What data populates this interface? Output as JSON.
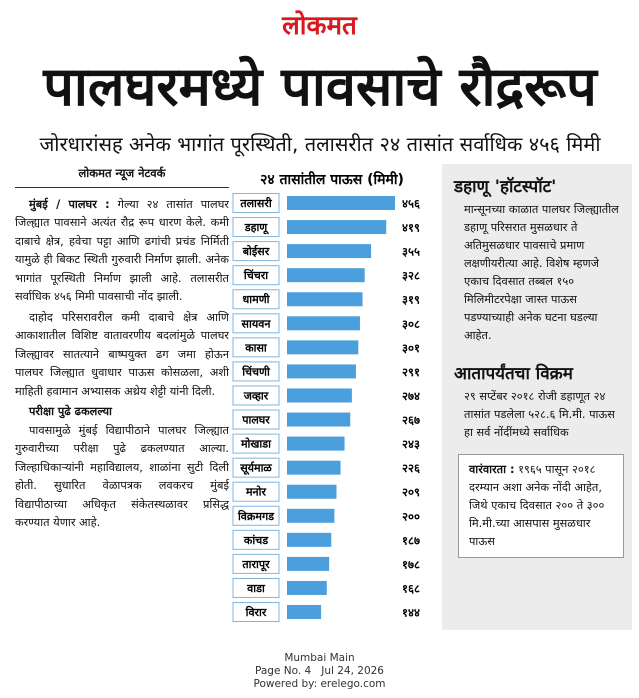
{
  "header": {
    "masthead": "लोकमत",
    "headline": "पालघरमध्ये पावसाचे रौद्ररूप",
    "subheadline": "जोरधारांसह अनेक भागांत पूरस्थिती, तलासरीत २४ तासांत सर्वाधिक ४५६ मिमी"
  },
  "article": {
    "byline": "लोकमत न्यूज नेटवर्क",
    "dateline": "मुंबई / पालघर :",
    "paragraphs": [
      "गेल्या २४ तासांत पालघर जिल्ह्यात पावसाने अत्यंत रौद्र रूप धारण केले. कमी दाबाचे क्षेत्र, हवेचा पट्टा आणि ढगांची प्रचंड निर्मिती यामुळे ही बिकट स्थिती गुरुवारी निर्माण झाली. अनेक भागांत पूरस्थिती निर्माण झाली आहे. तलासरीत सर्वाधिक ४५६ मिमी पावसाची नोंद झाली.",
      "दाहोद परिसरावरील कमी दाबाचे क्षेत्र आणि आकाशातील विशिष्ट वातावरणीय बदलांमुळे पालघर जिल्ह्यावर सातत्याने बाष्पयुक्त ढग जमा होऊन पालघर जिल्ह्यात धुवाधार पाऊस कोसळला, अशी माहिती हवामान अभ्यासक अथ्रेय शेट्टी यांनी दिली."
    ],
    "subhead": "परीक्षा पुढे ढकलल्या",
    "paragraph3": "पावसामुळे मुंबई विद्यापीठाने पालघर जिल्ह्यात गुरुवारीच्या परीक्षा पुढे ढकलण्यात आल्या. जिल्हाधिकाऱ्यांनी महाविद्यालय, शाळांना सुटी दिली होती. सुधारित वेळापत्रक लवकरच मुंबई विद्यापीठाच्या अधिकृत संकेतस्थळावर प्रसिद्ध करण्यात येणार आहे."
  },
  "chart_data": {
    "type": "bar",
    "orientation": "horizontal",
    "title": "२४ तासांतील पाऊस (मिमी)",
    "color": "#4a9fdc",
    "categories": [
      "तलासरी",
      "डहाणू",
      "बोईसर",
      "चिंचरा",
      "धामणी",
      "सायवन",
      "कासा",
      "चिंचणी",
      "जव्हार",
      "पालघर",
      "मोखाडा",
      "सूर्यमाळ",
      "मनोर",
      "विक्रमगड",
      "कांचड",
      "तारापूर",
      "वाडा",
      "विरार"
    ],
    "values": [
      456,
      419,
      355,
      328,
      319,
      308,
      301,
      291,
      274,
      267,
      243,
      226,
      209,
      200,
      187,
      178,
      168,
      144
    ],
    "value_labels": [
      "४५६",
      "४१९",
      "३५५",
      "३२८",
      "३१९",
      "३०८",
      "३०१",
      "२९१",
      "२७४",
      "२६७",
      "२४३",
      "२२६",
      "२०९",
      "२००",
      "१८७",
      "१७८",
      "१६८",
      "१४४"
    ]
  },
  "sidebar": {
    "heading1": "डहाणू 'हॉटस्पॉट'",
    "text1": "मान्सूनच्या काळात पालघर जिल्ह्यातील डहाणू परिसरात मुसळधार ते अतिमुसळधार पावसाचे प्रमाण लक्षणीयरीत्या आहे. विशेष म्हणजे एकाच दिवसात तब्बल १५० मिलिमीटरपेक्षा जास्त पाऊस पडण्याच्याही अनेक घटना घडल्या आहेत.",
    "heading2": "आतापर्यंतचा विक्रम",
    "text2": "२९ सप्टेंबर २०१८ रोजी डहाणूत २४ तासांत पडलेला ५२८.६ मि.मी. पाऊस हा सर्व नोंदींमध्ये सर्वाधिक",
    "box_label": "वारंवारता :",
    "box_text": "१९६५ पासून २०१८ दरम्यान अशा अनेक नोंदी आहेत, जिथे एकाच दिवसात २०० ते ३०० मि.मी.च्या आसपास मुसळधार पाऊस"
  },
  "footer": {
    "edition": "Mumbai Main",
    "page_date": "Page No. 4   Jul 24, 2026",
    "powered": "Powered by: erelego.com"
  }
}
